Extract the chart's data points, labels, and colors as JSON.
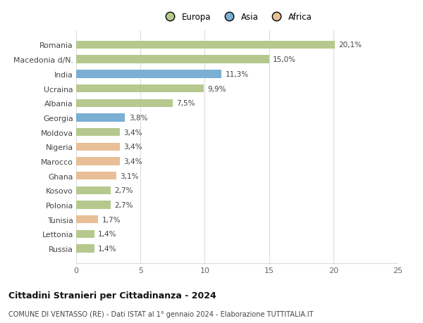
{
  "countries": [
    "Romania",
    "Macedonia d/N.",
    "India",
    "Ucraina",
    "Albania",
    "Georgia",
    "Moldova",
    "Nigeria",
    "Marocco",
    "Ghana",
    "Kosovo",
    "Polonia",
    "Tunisia",
    "Lettonia",
    "Russia"
  ],
  "values": [
    20.1,
    15.0,
    11.3,
    9.9,
    7.5,
    3.8,
    3.4,
    3.4,
    3.4,
    3.1,
    2.7,
    2.7,
    1.7,
    1.4,
    1.4
  ],
  "labels": [
    "20,1%",
    "15,0%",
    "11,3%",
    "9,9%",
    "7,5%",
    "3,8%",
    "3,4%",
    "3,4%",
    "3,4%",
    "3,1%",
    "2,7%",
    "2,7%",
    "1,7%",
    "1,4%",
    "1,4%"
  ],
  "continents": [
    "Europa",
    "Europa",
    "Asia",
    "Europa",
    "Europa",
    "Asia",
    "Europa",
    "Africa",
    "Africa",
    "Africa",
    "Europa",
    "Europa",
    "Africa",
    "Europa",
    "Europa"
  ],
  "colors": {
    "Europa": "#b5c98e",
    "Asia": "#7bafd4",
    "Africa": "#e8bf96"
  },
  "xlim": [
    0,
    25
  ],
  "xticks": [
    0,
    5,
    10,
    15,
    20,
    25
  ],
  "title": "Cittadini Stranieri per Cittadinanza - 2024",
  "subtitle": "COMUNE DI VENTASSO (RE) - Dati ISTAT al 1° gennaio 2024 - Elaborazione TUTTITALIA.IT",
  "background_color": "#ffffff",
  "bar_height": 0.55
}
